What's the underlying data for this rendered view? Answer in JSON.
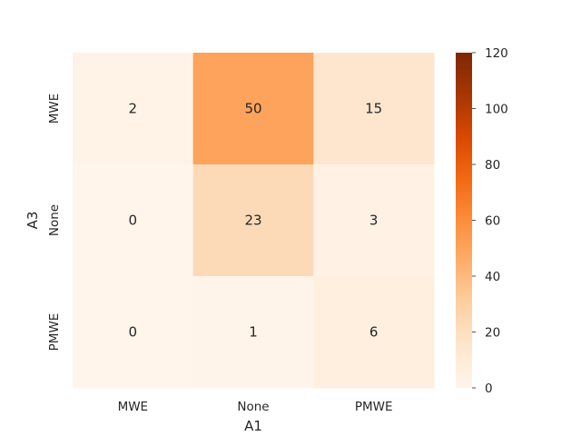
{
  "chart_data": {
    "type": "heatmap",
    "xlabel": "A1",
    "ylabel": "A3",
    "x_categories": [
      "MWE",
      "None",
      "PMWE"
    ],
    "y_categories": [
      "MWE",
      "None",
      "PMWE"
    ],
    "values": [
      [
        2,
        50,
        15
      ],
      [
        0,
        23,
        3
      ],
      [
        0,
        1,
        6
      ]
    ],
    "colorbar": {
      "min": 0,
      "max": 120,
      "ticks": [
        0,
        20,
        40,
        60,
        80,
        100,
        120
      ]
    },
    "colormap": "Oranges",
    "colors": {
      "low": "#fff5eb",
      "high": "#7f2704"
    },
    "annotated": true,
    "grid": false
  }
}
